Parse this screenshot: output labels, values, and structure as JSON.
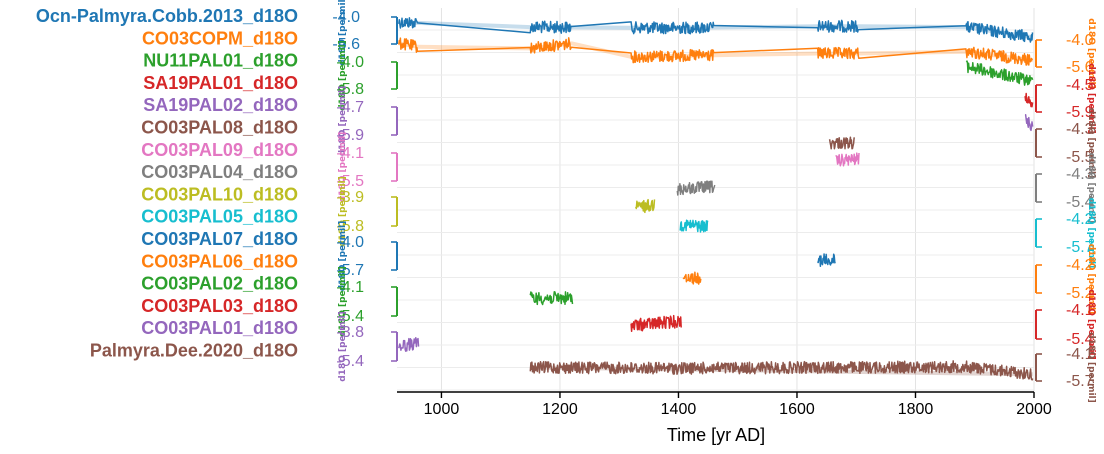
{
  "chart_data": {
    "type": "line",
    "layout": "stacked-multi-axis",
    "xlabel": "Time [yr AD]",
    "xlim": [
      925,
      2000
    ],
    "x_ticks": [
      1000,
      1200,
      1400,
      1600,
      1800,
      2000
    ],
    "grid": true,
    "legend": "left",
    "series": [
      {
        "name": "Ocn-Palmyra.Cobb.2013_d18O",
        "color": "#1f77b4",
        "ylabel": "d18O [permil]",
        "axis_side": "left",
        "ticks": [
          "-4.0",
          "-5.6"
        ],
        "ylim": [
          -4.0,
          -5.6
        ],
        "segments": [
          [
            928,
            960
          ],
          [
            1150,
            1220
          ],
          [
            1320,
            1460
          ],
          [
            1635,
            1705
          ],
          [
            1885,
            1998
          ]
        ],
        "envelope": true,
        "points": [
          [
            928,
            -4.3
          ],
          [
            960,
            -4.35
          ],
          [
            1150,
            -4.6
          ],
          [
            1400,
            -4.65
          ],
          [
            1635,
            -4.55
          ],
          [
            1705,
            -4.55
          ],
          [
            1885,
            -4.6
          ],
          [
            1998,
            -5.2
          ]
        ]
      },
      {
        "name": "CO03COPM_d18O",
        "color": "#ff7f0e",
        "ylabel": "d18O [permil]",
        "axis_side": "right",
        "ticks": [
          "-4.0",
          "-5.6"
        ],
        "ylim": [
          -4.0,
          -5.6
        ],
        "segments": [
          [
            928,
            960
          ],
          [
            1150,
            1220
          ],
          [
            1320,
            1460
          ],
          [
            1635,
            1705
          ],
          [
            1885,
            1998
          ]
        ],
        "envelope": true,
        "points": [
          [
            928,
            -4.2
          ],
          [
            960,
            -4.4
          ],
          [
            1150,
            -4.5
          ],
          [
            1220,
            -4.2
          ],
          [
            1320,
            -5.0
          ],
          [
            1460,
            -4.9
          ],
          [
            1635,
            -4.8
          ],
          [
            1705,
            -4.8
          ],
          [
            1885,
            -4.7
          ],
          [
            1998,
            -5.2
          ]
        ]
      },
      {
        "name": "NU11PAL01_d18O",
        "color": "#2ca02c",
        "ylabel": "d18O [permil]",
        "axis_side": "left",
        "ticks": [
          "-4.0",
          "-5.8"
        ],
        "ylim": [
          -4.0,
          -5.8
        ],
        "segments": [
          [
            1886,
            1998
          ]
        ],
        "points": [
          [
            1886,
            -4.3
          ],
          [
            1998,
            -5.3
          ]
        ]
      },
      {
        "name": "SA19PAL01_d18O",
        "color": "#d62728",
        "ylabel": "d18O [permil]",
        "axis_side": "right",
        "ticks": [
          "-4.5",
          "-5.9"
        ],
        "ylim": [
          -4.5,
          -5.9
        ],
        "segments": [
          [
            1985,
            1998
          ]
        ],
        "points": [
          [
            1985,
            -5.0
          ],
          [
            1998,
            -5.5
          ]
        ]
      },
      {
        "name": "SA19PAL02_d18O",
        "color": "#9467bd",
        "ylabel": "d18O [permil]",
        "axis_side": "left",
        "ticks": [
          "-4.7",
          "-5.9"
        ],
        "ylim": [
          -4.7,
          -5.9
        ],
        "segments": [
          [
            1985,
            1998
          ]
        ],
        "points": [
          [
            1985,
            -5.2
          ],
          [
            1998,
            -5.6
          ]
        ]
      },
      {
        "name": "CO03PAL08_d18O",
        "color": "#8c564b",
        "ylabel": "d18O [permil]",
        "axis_side": "right",
        "ticks": [
          "-4.3",
          "-5.5"
        ],
        "ylim": [
          -4.3,
          -5.5
        ],
        "segments": [
          [
            1655,
            1698
          ]
        ],
        "points": [
          [
            1655,
            -4.9
          ],
          [
            1698,
            -4.9
          ]
        ]
      },
      {
        "name": "CO03PAL09_d18O",
        "color": "#e377c2",
        "ylabel": "d18O [permil]",
        "axis_side": "left",
        "ticks": [
          "-4.1",
          "-5.5"
        ],
        "ylim": [
          -4.1,
          -5.5
        ],
        "segments": [
          [
            1665,
            1705
          ]
        ],
        "points": [
          [
            1665,
            -4.5
          ],
          [
            1705,
            -4.4
          ]
        ]
      },
      {
        "name": "CO03PAL04_d18O",
        "color": "#7f7f7f",
        "ylabel": "d18O [permil]",
        "axis_side": "right",
        "ticks": [
          "-4.3",
          "-5.4"
        ],
        "ylim": [
          -4.3,
          -5.4
        ],
        "segments": [
          [
            1398,
            1462
          ]
        ],
        "points": [
          [
            1398,
            -4.9
          ],
          [
            1462,
            -4.8
          ]
        ]
      },
      {
        "name": "CO03PAL10_d18O",
        "color": "#bcbd22",
        "ylabel": "d18O [permil]",
        "axis_side": "left",
        "ticks": [
          "-3.9",
          "-5.8"
        ],
        "ylim": [
          -3.9,
          -5.8
        ],
        "segments": [
          [
            1328,
            1360
          ]
        ],
        "points": [
          [
            1328,
            -4.6
          ],
          [
            1360,
            -4.4
          ]
        ]
      },
      {
        "name": "CO03PAL05_d18O",
        "color": "#17becf",
        "ylabel": "d18O [permil]",
        "axis_side": "right",
        "ticks": [
          "-4.2",
          "-5.7"
        ],
        "ylim": [
          -4.2,
          -5.7
        ],
        "segments": [
          [
            1403,
            1450
          ]
        ],
        "points": [
          [
            1403,
            -4.5
          ],
          [
            1450,
            -4.6
          ]
        ]
      },
      {
        "name": "CO03PAL07_d18O",
        "color": "#1f77b4",
        "ylabel": "d18O [permil]",
        "axis_side": "left",
        "ticks": [
          "-4.0",
          "-5.7"
        ],
        "ylim": [
          -4.0,
          -5.7
        ],
        "segments": [
          [
            1635,
            1665
          ]
        ],
        "points": [
          [
            1635,
            -5.1
          ],
          [
            1665,
            -5.1
          ]
        ]
      },
      {
        "name": "CO03PAL06_d18O",
        "color": "#ff7f0e",
        "ylabel": "d18O [permil]",
        "axis_side": "right",
        "ticks": [
          "-4.2",
          "-5.2"
        ],
        "ylim": [
          -4.2,
          -5.2
        ],
        "segments": [
          [
            1408,
            1438
          ]
        ],
        "points": [
          [
            1408,
            -4.6
          ],
          [
            1438,
            -4.7
          ]
        ]
      },
      {
        "name": "CO03PAL02_d18O",
        "color": "#2ca02c",
        "ylabel": "d18O [permil]",
        "axis_side": "left",
        "ticks": [
          "-4.1",
          "-5.4"
        ],
        "ylim": [
          -4.1,
          -5.4
        ],
        "segments": [
          [
            1150,
            1222
          ]
        ],
        "points": [
          [
            1150,
            -4.6
          ],
          [
            1222,
            -4.6
          ]
        ]
      },
      {
        "name": "CO03PAL03_d18O",
        "color": "#d62728",
        "ylabel": "d18O [permil]",
        "axis_side": "right",
        "ticks": [
          "-4.1",
          "-5.4"
        ],
        "ylim": [
          -4.1,
          -5.4
        ],
        "segments": [
          [
            1320,
            1405
          ]
        ],
        "points": [
          [
            1320,
            -4.8
          ],
          [
            1405,
            -4.6
          ]
        ]
      },
      {
        "name": "CO03PAL01_d18O",
        "color": "#9467bd",
        "ylabel": "d18O [permil]",
        "axis_side": "left",
        "ticks": [
          "-3.8",
          "-5.4"
        ],
        "ylim": [
          -3.8,
          -5.4
        ],
        "segments": [
          [
            928,
            962
          ]
        ],
        "points": [
          [
            928,
            -4.6
          ],
          [
            962,
            -4.4
          ]
        ]
      },
      {
        "name": "Palmyra.Dee.2020_d18O",
        "color": "#8c564b",
        "ylabel": "d18O [permil]",
        "axis_side": "right",
        "ticks": [
          "-4.1",
          "-5.7"
        ],
        "ylim": [
          -4.1,
          -5.7
        ],
        "segments": [
          [
            1150,
            1998
          ]
        ],
        "envelope": true,
        "points": [
          [
            1150,
            -4.9
          ],
          [
            1400,
            -4.95
          ],
          [
            1635,
            -4.9
          ],
          [
            1705,
            -4.9
          ],
          [
            1885,
            -4.85
          ],
          [
            1998,
            -5.3
          ]
        ]
      }
    ]
  }
}
